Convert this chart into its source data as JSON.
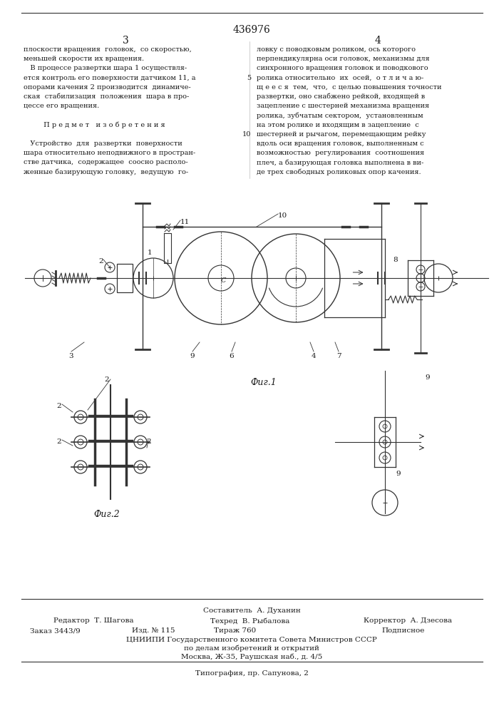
{
  "patent_number": "436976",
  "page_left": "3",
  "page_right": "4",
  "text_col1_lines": [
    "плоскости вращения  головок,  со скоростью,",
    "меньшей скорости их вращения.",
    "   В процессе развертки шара 1 осуществля-",
    "ется контроль его поверхности датчиком 11, а",
    "опорами качения 2 производится  динамиче-",
    "ская  стабилизация  положения  шара в про-",
    "цессе его вращения.",
    "",
    "         П р е д м е т   и з о б р е т е н и я",
    "",
    "   Устройство  для  развертки  поверхности",
    "шара относительно неподвижного в простран-",
    "стве датчика,  содержащее  соосно располо-",
    "женные базирующую головку,  ведущую  го-"
  ],
  "text_col2_lines": [
    "ловку с поводковым роликом, ось которого",
    "перпендикулярна оси головок, механизмы для",
    "синхронного вращения головок и поводкового",
    "ролика относительно  их  осей,  о т л и ч а ю-",
    "щ е е с я  тем,  что,  с целью повышения точности",
    "развертки, оно снабжено рейкой, входящей в",
    "зацепление с шестерней механизма вращения",
    "ролика, зубчатым сектором,  установленным",
    "на этом ролике и входящим в зацепление  с",
    "шестерней и рычагом, перемещающим рейку",
    "вдоль оси вращения головок, выполненным с",
    "возможностью  регулирования  соотношения",
    "плеч, а базирующая головка выполнена в ви-",
    "де трех свободных роликовых опор качения."
  ],
  "fig1_label": "Фиг.1",
  "fig2_label": "Фиг.2",
  "footer_composer": "Составитель  А. Духанин",
  "footer_editor": "Редактор  Т. Шагова",
  "footer_techred": "Техред  В. Рыбалова",
  "footer_corrector": "Корректор  А. Дзесова",
  "footer_order": "Заказ 3443/9",
  "footer_edition": "Изд. № 115",
  "footer_print_run": "Тираж 760",
  "footer_subscription": "Подписное",
  "footer_cniip1": "ЦНИИПИ Государственного комитета Совета Министров СССР",
  "footer_cniip2": "по делам изобретений и открытий",
  "footer_cniip3": "Москва, Ж-35, Раушская наб., д. 4/5",
  "footer_typograph": "Типография, пр. Сапунова, 2",
  "bg_color": "#ffffff",
  "text_color": "#1a1a1a",
  "line_color": "#333333"
}
